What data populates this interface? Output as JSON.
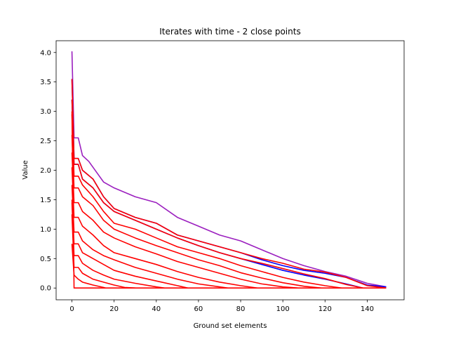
{
  "chart_data": {
    "type": "line",
    "title": "Iterates with time - 2 close points",
    "xlabel": "Ground set elements",
    "ylabel": "Value",
    "xlim": [
      -7.5,
      157.5
    ],
    "ylim": [
      -0.2,
      4.2
    ],
    "xticks": [
      0,
      20,
      40,
      60,
      80,
      100,
      120,
      140
    ],
    "yticks": [
      0.0,
      0.5,
      1.0,
      1.5,
      2.0,
      2.5,
      3.0,
      3.5,
      4.0
    ],
    "xtick_labels": [
      "0",
      "20",
      "40",
      "60",
      "80",
      "100",
      "120",
      "140"
    ],
    "ytick_labels": [
      "0.0",
      "0.5",
      "1.0",
      "1.5",
      "2.0",
      "2.5",
      "3.0",
      "3.5",
      "4.0"
    ],
    "grid": false,
    "legend": "none",
    "colors": {
      "blue": "#0000ff",
      "red": "#ff0000",
      "purple": "#9b1fbf"
    },
    "series": [
      {
        "color": "purple",
        "x": [
          0,
          1,
          3,
          5,
          8,
          10,
          15,
          20,
          30,
          40,
          50,
          60,
          70,
          80,
          90,
          100,
          110,
          120,
          130,
          140,
          149
        ],
        "values": [
          4.02,
          2.55,
          2.55,
          2.25,
          2.15,
          2.05,
          1.8,
          1.7,
          1.55,
          1.45,
          1.2,
          1.05,
          0.9,
          0.8,
          0.65,
          0.5,
          0.38,
          0.28,
          0.2,
          0.08,
          0.02
        ]
      },
      {
        "color": "blue",
        "x": [
          0,
          1,
          3,
          5,
          10,
          15,
          20,
          30,
          40,
          50,
          60,
          70,
          80,
          90,
          100,
          110,
          120,
          130,
          140,
          149
        ],
        "values": [
          3.55,
          2.2,
          2.2,
          2.0,
          1.85,
          1.55,
          1.35,
          1.2,
          1.1,
          0.9,
          0.8,
          0.7,
          0.6,
          0.48,
          0.38,
          0.3,
          0.25,
          0.18,
          0.05,
          0.02
        ]
      },
      {
        "color": "red",
        "x": [
          0,
          1,
          3,
          5,
          10,
          15,
          20,
          30,
          40,
          50,
          60,
          70,
          80,
          90,
          100,
          110,
          120,
          130,
          140,
          149
        ],
        "values": [
          3.55,
          2.2,
          2.2,
          2.0,
          1.85,
          1.55,
          1.35,
          1.2,
          1.1,
          0.9,
          0.8,
          0.7,
          0.6,
          0.5,
          0.42,
          0.32,
          0.27,
          0.18,
          0.04,
          0.0
        ]
      },
      {
        "color": "blue",
        "x": [
          0,
          1,
          3,
          5,
          10,
          15,
          20,
          30,
          40,
          50,
          60,
          70,
          80,
          90,
          100,
          110,
          120,
          130,
          138
        ],
        "values": [
          3.2,
          2.1,
          2.1,
          1.85,
          1.7,
          1.45,
          1.3,
          1.15,
          1.0,
          0.85,
          0.72,
          0.6,
          0.5,
          0.4,
          0.3,
          0.22,
          0.15,
          0.07,
          0.0
        ]
      },
      {
        "color": "red",
        "x": [
          0,
          1,
          3,
          5,
          10,
          15,
          20,
          30,
          40,
          50,
          60,
          70,
          80,
          90,
          100,
          110,
          120,
          130,
          138
        ],
        "values": [
          3.2,
          2.1,
          2.1,
          1.85,
          1.7,
          1.45,
          1.3,
          1.15,
          1.0,
          0.85,
          0.72,
          0.6,
          0.5,
          0.42,
          0.33,
          0.24,
          0.16,
          0.06,
          0.0
        ]
      },
      {
        "color": "red",
        "x": [
          0,
          1,
          3,
          5,
          10,
          15,
          20,
          30,
          40,
          50,
          60,
          70,
          80,
          90,
          100,
          110,
          120,
          128
        ],
        "values": [
          2.95,
          1.9,
          1.9,
          1.75,
          1.55,
          1.3,
          1.1,
          1.0,
          0.85,
          0.7,
          0.6,
          0.5,
          0.38,
          0.28,
          0.18,
          0.1,
          0.04,
          0.0
        ]
      },
      {
        "color": "red",
        "x": [
          0,
          1,
          3,
          5,
          10,
          15,
          20,
          30,
          40,
          50,
          60,
          70,
          80,
          90,
          100,
          110,
          118
        ],
        "values": [
          2.6,
          1.7,
          1.7,
          1.55,
          1.4,
          1.15,
          1.0,
          0.85,
          0.72,
          0.6,
          0.48,
          0.38,
          0.26,
          0.17,
          0.09,
          0.03,
          0.0
        ]
      },
      {
        "color": "red",
        "x": [
          0,
          1,
          3,
          5,
          10,
          15,
          20,
          30,
          40,
          50,
          60,
          70,
          80,
          90,
          100,
          107
        ],
        "values": [
          2.3,
          1.45,
          1.45,
          1.3,
          1.15,
          0.95,
          0.85,
          0.7,
          0.58,
          0.45,
          0.35,
          0.25,
          0.15,
          0.07,
          0.02,
          0.0
        ]
      },
      {
        "color": "red",
        "x": [
          0,
          1,
          3,
          5,
          10,
          15,
          20,
          30,
          40,
          50,
          60,
          70,
          80,
          88
        ],
        "values": [
          2.05,
          1.2,
          1.2,
          1.05,
          0.9,
          0.72,
          0.6,
          0.5,
          0.4,
          0.28,
          0.18,
          0.1,
          0.04,
          0.0
        ]
      },
      {
        "color": "red",
        "x": [
          0,
          1,
          3,
          5,
          10,
          15,
          20,
          30,
          40,
          50,
          60,
          70,
          74
        ],
        "values": [
          1.75,
          0.95,
          0.95,
          0.8,
          0.65,
          0.55,
          0.48,
          0.35,
          0.25,
          0.15,
          0.07,
          0.02,
          0.0
        ]
      },
      {
        "color": "red",
        "x": [
          0,
          1,
          3,
          5,
          10,
          15,
          20,
          30,
          40,
          50,
          55
        ],
        "values": [
          1.5,
          0.75,
          0.75,
          0.6,
          0.5,
          0.4,
          0.3,
          0.2,
          0.12,
          0.04,
          0.0
        ]
      },
      {
        "color": "red",
        "x": [
          0,
          1,
          3,
          5,
          10,
          15,
          20,
          30,
          40,
          44
        ],
        "values": [
          1.45,
          0.55,
          0.55,
          0.42,
          0.3,
          0.22,
          0.15,
          0.08,
          0.02,
          0.0
        ]
      },
      {
        "color": "red",
        "x": [
          0,
          1,
          3,
          5,
          10,
          15,
          20,
          25,
          30
        ],
        "values": [
          1.25,
          0.35,
          0.35,
          0.25,
          0.15,
          0.1,
          0.05,
          0.01,
          0.0
        ]
      },
      {
        "color": "red",
        "x": [
          0,
          1,
          3,
          5,
          10,
          15,
          16
        ],
        "values": [
          0.75,
          0.22,
          0.15,
          0.1,
          0.05,
          0.01,
          0.0
        ]
      },
      {
        "color": "red",
        "x": [
          0,
          1,
          149
        ],
        "values": [
          3.0,
          0.0,
          0.0
        ]
      }
    ]
  }
}
